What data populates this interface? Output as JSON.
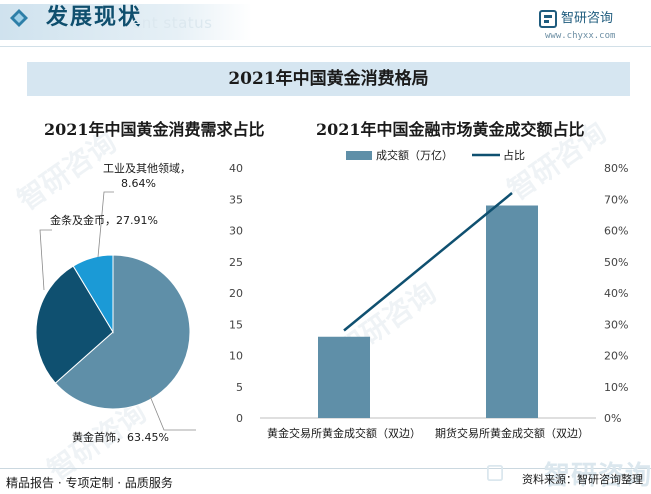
{
  "header": {
    "title": "发展现状",
    "ghost_title": "ent status",
    "brand_name": "智研咨询",
    "brand_url": "www.chyxx.com"
  },
  "banner": {
    "title": "2021年中国黄金消费格局"
  },
  "colors": {
    "dark_teal": "#0f5070",
    "steel_blue": "#5f8fa8",
    "cyan": "#1b9ad6",
    "line": "#0f5070",
    "banner_bg": "#d6e6f1"
  },
  "chart_data": [
    {
      "type": "pie",
      "title": "2021年中国黄金消费需求占比",
      "slices": [
        {
          "label": "黄金首饰，63.45%",
          "value": 63.45,
          "color": "#5f8fa8"
        },
        {
          "label": "金条及金币，27.91%",
          "value": 27.91,
          "color": "#0f5070"
        },
        {
          "label": "工业及其他领域，8.64%",
          "value": 8.64,
          "color": "#1b9ad6"
        }
      ]
    },
    {
      "type": "bar",
      "title": "2021年中国金融市场黄金成交额占比",
      "categories": [
        "黄金交易所黄金成交额（双边）",
        "期货交易所黄金成交额（双边）"
      ],
      "series": [
        {
          "name": "成交额（万亿）",
          "type": "bar",
          "axis": "left",
          "values": [
            13.0,
            34.0
          ],
          "color": "#5f8fa8"
        },
        {
          "name": "占比",
          "type": "line",
          "axis": "right",
          "values": [
            28,
            72
          ],
          "color": "#0f5070"
        }
      ],
      "ylim": [
        0,
        40
      ],
      "yticks": [
        "0",
        "5",
        "10",
        "15",
        "20",
        "25",
        "30",
        "35",
        "40"
      ],
      "y2lim": [
        0,
        80
      ],
      "y2ticks": [
        "0%",
        "10%",
        "20%",
        "30%",
        "40%",
        "50%",
        "60%",
        "70%",
        "80%"
      ],
      "legend": "top"
    }
  ],
  "footer": {
    "left": "精品报告 · 专项定制 · 品质服务",
    "source": "资料来源：智研咨询整理",
    "ghost": "智研咨询"
  }
}
